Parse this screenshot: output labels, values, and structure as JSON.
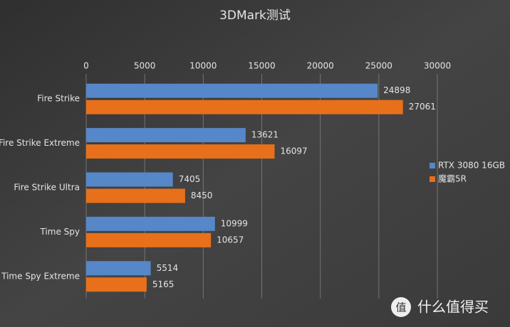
{
  "chart_data": {
    "type": "bar",
    "orientation": "horizontal",
    "title": "3DMark测试",
    "categories": [
      "Fire Strike",
      "Fire Strike Extreme",
      "Fire Strike Ultra",
      "Time Spy",
      "Time Spy Extreme"
    ],
    "series": [
      {
        "name": "RTX 3080 16GB",
        "color": "#5687c8",
        "values": [
          24898,
          13621,
          7405,
          10999,
          5514
        ]
      },
      {
        "name": "魔霸5R",
        "color": "#e8701a",
        "values": [
          27061,
          16097,
          8450,
          10657,
          5165
        ]
      }
    ],
    "xlim": [
      0,
      30000
    ],
    "xticks": [
      0,
      5000,
      10000,
      15000,
      20000,
      25000,
      30000
    ],
    "grid": true,
    "legend": "right",
    "data_labels": true
  },
  "watermark": {
    "icon": "值",
    "text": "什么值得买"
  }
}
